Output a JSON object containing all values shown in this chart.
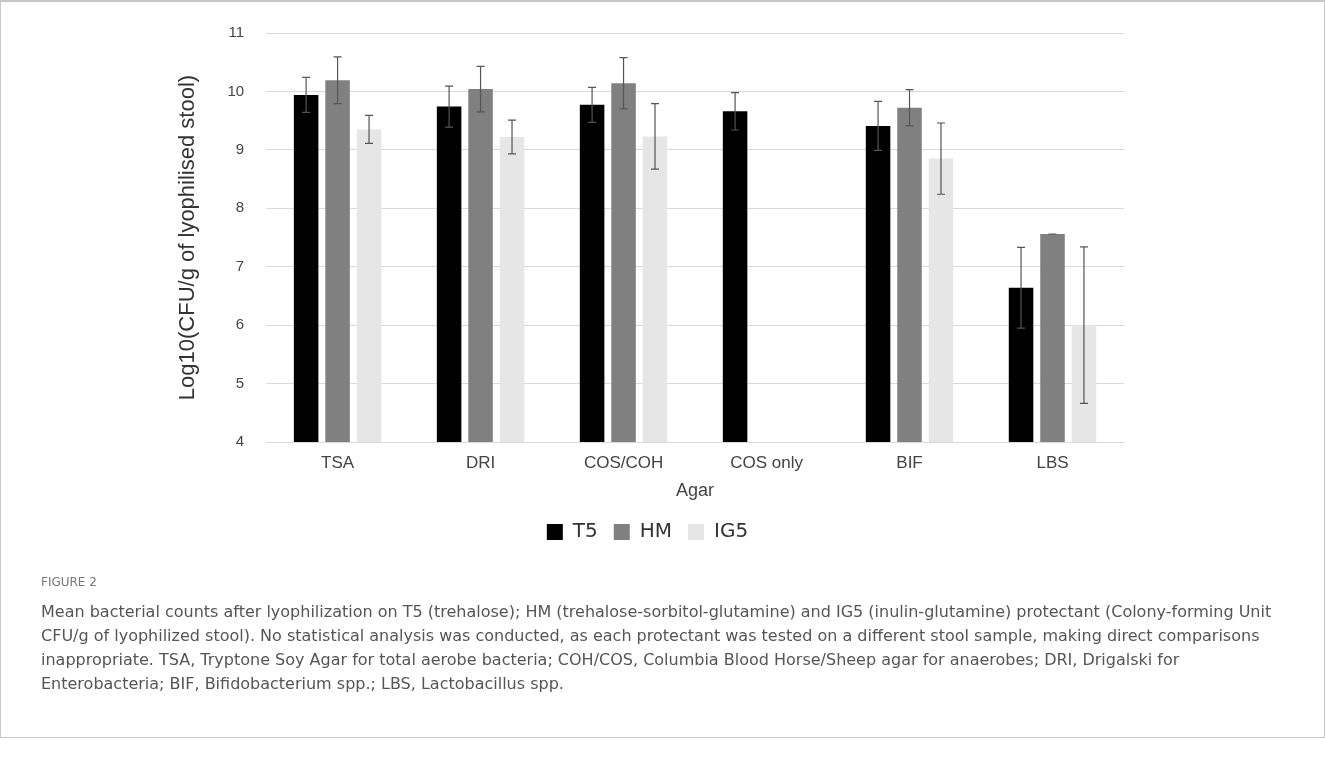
{
  "chart_data": {
    "type": "bar",
    "xlabel": "Agar",
    "ylabel": "Log10(CFU/g of lyophilised stool)",
    "categories": [
      "TSA",
      "DRI",
      "COS/COH",
      "COS only",
      "BIF",
      "LBS"
    ],
    "series": [
      {
        "name": "T5",
        "color": "#000000",
        "values": [
          9.94,
          9.74,
          9.77,
          9.66,
          9.41,
          6.64
        ],
        "errors": [
          0.3,
          0.35,
          0.3,
          0.32,
          0.42,
          0.69
        ]
      },
      {
        "name": "HM",
        "color": "#808080",
        "values": [
          10.19,
          10.04,
          10.14,
          null,
          9.72,
          7.56
        ],
        "errors": [
          0.4,
          0.39,
          0.44,
          null,
          0.31,
          0
        ]
      },
      {
        "name": "IG5",
        "color": "#e7e6e6",
        "values": [
          9.35,
          9.22,
          9.23,
          null,
          8.85,
          6.0
        ],
        "errors": [
          0.24,
          0.29,
          0.56,
          null,
          0.61,
          1.34
        ]
      }
    ],
    "ylim": [
      4,
      11
    ],
    "yticks": [
      4,
      5,
      6,
      7,
      8,
      9,
      10,
      11
    ],
    "grid": "y",
    "legend": "bottom",
    "annotations": [
      "FIGURE 2",
      "Mean bacterial counts after lyophilization on T5 (trehalose); HM (trehalose-sorbitol-glutamine) and IG5 (inulin-glutamine) protectant (Colony-forming Unit CFU/g of lyophilized stool). No statistical analysis was conducted, as each protectant was tested on a different stool sample, making direct comparisons inappropriate. TSA, Tryptone Soy Agar for total aerobe bacteria; COH/COS, Columbia Blood Horse/Sheep agar for anaerobes; DRI, Drigalski for Enterobacteria; BIF, Bifidobacterium spp.; LBS, Lactobacillus spp."
    ]
  }
}
